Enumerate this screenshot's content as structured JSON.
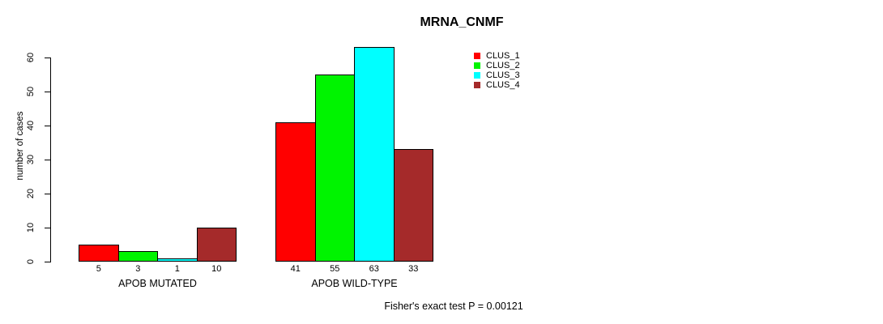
{
  "chart_data": {
    "type": "bar",
    "title": "MRNA_CNMF",
    "xlabel": "",
    "ylabel": "number of cases",
    "ylim": [
      0,
      60
    ],
    "yticks": [
      0,
      10,
      20,
      30,
      40,
      50,
      60
    ],
    "grid": false,
    "legend_position": "top-right",
    "groups": [
      {
        "label": "APOB MUTATED",
        "values": [
          5,
          3,
          1,
          10
        ]
      },
      {
        "label": "APOB WILD-TYPE",
        "values": [
          41,
          55,
          63,
          33
        ]
      }
    ],
    "series": [
      {
        "name": "CLUS_1",
        "values": [
          5,
          41
        ]
      },
      {
        "name": "CLUS_2",
        "values": [
          3,
          55
        ]
      },
      {
        "name": "CLUS_3",
        "values": [
          1,
          63
        ]
      },
      {
        "name": "CLUS_4",
        "values": [
          10,
          33
        ]
      }
    ],
    "legend": [
      {
        "label": "CLUS_1",
        "color": "#ff0000"
      },
      {
        "label": "CLUS_2",
        "color": "#00f400"
      },
      {
        "label": "CLUS_3",
        "color": "#00ffff"
      },
      {
        "label": "CLUS_4",
        "color": "#a52a2a"
      }
    ],
    "annotation": "Fisher's exact test P = 0.00121",
    "axis_color": "#000000",
    "bar_border_color": "#000000",
    "background_color": "#ffffff"
  }
}
